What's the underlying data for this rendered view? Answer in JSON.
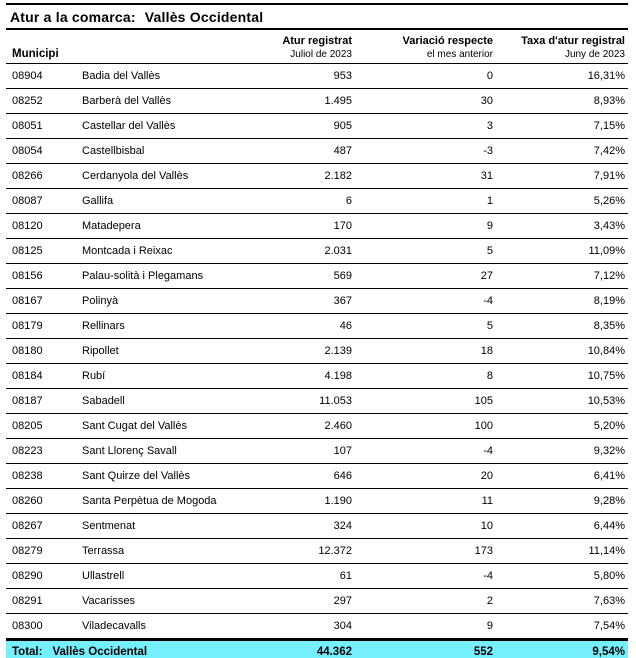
{
  "title": {
    "label": "Atur a la comarca:",
    "value": "Vallès Occidental"
  },
  "table": {
    "columns": {
      "municipality": {
        "label": "Municipi"
      },
      "registered": {
        "label": "Atur registrat",
        "sublabel": "Juliol de 2023"
      },
      "variation": {
        "label": "Variació respecte",
        "sublabel": "el mes anterior"
      },
      "rate": {
        "label": "Taxa d'atur registral",
        "sublabel": "Juny de 2023"
      }
    },
    "rows": [
      {
        "code": "08904",
        "name": "Badia del Vallès",
        "registered": "953",
        "variation": "0",
        "rate": "16,31%"
      },
      {
        "code": "08252",
        "name": "Barberà del Vallès",
        "registered": "1.495",
        "variation": "30",
        "rate": "8,93%"
      },
      {
        "code": "08051",
        "name": "Castellar del Vallès",
        "registered": "905",
        "variation": "3",
        "rate": "7,15%"
      },
      {
        "code": "08054",
        "name": "Castellbisbal",
        "registered": "487",
        "variation": "-3",
        "rate": "7,42%"
      },
      {
        "code": "08266",
        "name": "Cerdanyola del Vallès",
        "registered": "2.182",
        "variation": "31",
        "rate": "7,91%"
      },
      {
        "code": "08087",
        "name": "Gallifa",
        "registered": "6",
        "variation": "1",
        "rate": "5,26%"
      },
      {
        "code": "08120",
        "name": "Matadepera",
        "registered": "170",
        "variation": "9",
        "rate": "3,43%"
      },
      {
        "code": "08125",
        "name": "Montcada i Reixac",
        "registered": "2.031",
        "variation": "5",
        "rate": "11,09%"
      },
      {
        "code": "08156",
        "name": "Palau-solità i Plegamans",
        "registered": "569",
        "variation": "27",
        "rate": "7,12%"
      },
      {
        "code": "08167",
        "name": "Polinyà",
        "registered": "367",
        "variation": "-4",
        "rate": "8,19%"
      },
      {
        "code": "08179",
        "name": "Rellinars",
        "registered": "46",
        "variation": "5",
        "rate": "8,35%"
      },
      {
        "code": "08180",
        "name": "Ripollet",
        "registered": "2.139",
        "variation": "18",
        "rate": "10,84%"
      },
      {
        "code": "08184",
        "name": "Rubí",
        "registered": "4.198",
        "variation": "8",
        "rate": "10,75%"
      },
      {
        "code": "08187",
        "name": "Sabadell",
        "registered": "11.053",
        "variation": "105",
        "rate": "10,53%"
      },
      {
        "code": "08205",
        "name": "Sant Cugat del Vallès",
        "registered": "2.460",
        "variation": "100",
        "rate": "5,20%"
      },
      {
        "code": "08223",
        "name": "Sant Llorenç Savall",
        "registered": "107",
        "variation": "-4",
        "rate": "9,32%"
      },
      {
        "code": "08238",
        "name": "Sant Quirze del Vallès",
        "registered": "646",
        "variation": "20",
        "rate": "6,41%"
      },
      {
        "code": "08260",
        "name": "Santa Perpètua de Mogoda",
        "registered": "1.190",
        "variation": "11",
        "rate": "9,28%"
      },
      {
        "code": "08267",
        "name": "Sentmenat",
        "registered": "324",
        "variation": "10",
        "rate": "6,44%"
      },
      {
        "code": "08279",
        "name": "Terrassa",
        "registered": "12.372",
        "variation": "173",
        "rate": "11,14%"
      },
      {
        "code": "08290",
        "name": "Ullastrell",
        "registered": "61",
        "variation": "-4",
        "rate": "5,80%"
      },
      {
        "code": "08291",
        "name": "Vacarisses",
        "registered": "297",
        "variation": "2",
        "rate": "7,63%"
      },
      {
        "code": "08300",
        "name": "Viladecavalls",
        "registered": "304",
        "variation": "9",
        "rate": "7,54%"
      }
    ],
    "total": {
      "label": "Total:",
      "name": "Vallès Occidental",
      "registered": "44.362",
      "variation": "552",
      "rate": "9,54%"
    }
  },
  "colors": {
    "total_row_bg": "#76EFFC",
    "border": "#000000"
  }
}
